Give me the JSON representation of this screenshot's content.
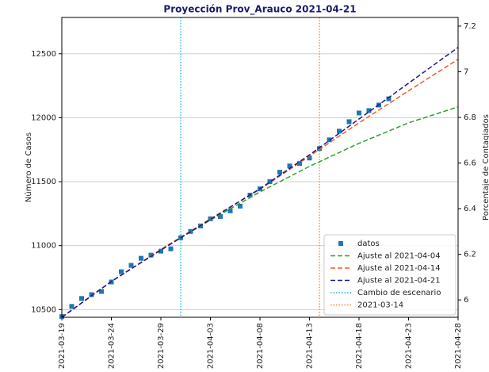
{
  "chart_data": {
    "type": "line",
    "title": "Proyección Prov_Arauco 2021-04-21",
    "ylabel": "Número de Casos",
    "y2label": "Porcentaje de Contagiados",
    "xlim": [
      "2021-03-19",
      "2021-04-28"
    ],
    "xticks": [
      "2021-03-19",
      "2021-03-24",
      "2021-03-29",
      "2021-04-03",
      "2021-04-08",
      "2021-04-13",
      "2021-04-18",
      "2021-04-23",
      "2021-04-28"
    ],
    "ylim": [
      10440,
      12784
    ],
    "yticks": [
      10500,
      11000,
      11500,
      12000,
      12500
    ],
    "y2lim": [
      5.924,
      7.238
    ],
    "y2ticks": [
      6.0,
      6.2,
      6.4,
      6.6,
      6.8,
      7.0,
      7.2
    ],
    "grid": true,
    "legend": "lower right",
    "series": [
      {
        "name": "datos",
        "type": "scatter",
        "color": "#1f77b4",
        "x": [
          "2021-03-19",
          "2021-03-20",
          "2021-03-21",
          "2021-03-22",
          "2021-03-23",
          "2021-03-24",
          "2021-03-25",
          "2021-03-26",
          "2021-03-27",
          "2021-03-28",
          "2021-03-29",
          "2021-03-30",
          "2021-03-31",
          "2021-04-01",
          "2021-04-02",
          "2021-04-03",
          "2021-04-04",
          "2021-04-05",
          "2021-04-06",
          "2021-04-07",
          "2021-04-08",
          "2021-04-09",
          "2021-04-10",
          "2021-04-11",
          "2021-04-12",
          "2021-04-13",
          "2021-04-14",
          "2021-04-15",
          "2021-04-16",
          "2021-04-17",
          "2021-04-18",
          "2021-04-19",
          "2021-04-20",
          "2021-04-21"
        ],
        "values": [
          10445,
          10525,
          10587,
          10617,
          10642,
          10716,
          10796,
          10846,
          10901,
          10926,
          10957,
          10975,
          11062,
          11111,
          11154,
          11210,
          11228,
          11272,
          11309,
          11395,
          11444,
          11500,
          11574,
          11623,
          11642,
          11685,
          11759,
          11827,
          11895,
          11969,
          12037,
          12056,
          12099,
          12148
        ]
      },
      {
        "name": "Ajuste al 2021-04-04",
        "type": "line",
        "dash": "dashed",
        "color": "#2ca02c",
        "x": [
          "2021-03-19",
          "2021-03-24",
          "2021-03-29",
          "2021-04-03",
          "2021-04-08",
          "2021-04-13",
          "2021-04-18",
          "2021-04-23",
          "2021-04-28"
        ],
        "values": [
          10440,
          10720,
          10970,
          11200,
          11420,
          11620,
          11800,
          11960,
          12085
        ]
      },
      {
        "name": "Ajuste al 2021-04-14",
        "type": "line",
        "dash": "dashed",
        "color": "#f05a28",
        "x": [
          "2021-03-19",
          "2021-03-24",
          "2021-03-29",
          "2021-04-03",
          "2021-04-08",
          "2021-04-13",
          "2021-04-18",
          "2021-04-23",
          "2021-04-28"
        ],
        "values": [
          10440,
          10720,
          10970,
          11210,
          11440,
          11700,
          11960,
          12210,
          12457
        ]
      },
      {
        "name": "Ajuste al 2021-04-21",
        "type": "line",
        "dash": "dashed",
        "color": "#1a1a8c",
        "x": [
          "2021-03-19",
          "2021-03-24",
          "2021-03-29",
          "2021-04-03",
          "2021-04-08",
          "2021-04-13",
          "2021-04-18",
          "2021-04-23",
          "2021-04-28"
        ],
        "values": [
          10440,
          10720,
          10965,
          11205,
          11445,
          11710,
          11990,
          12270,
          12550
        ]
      }
    ],
    "vlines": [
      {
        "name": "Cambio de escenario",
        "x": "2021-03-31",
        "color": "#17becf"
      },
      {
        "name": "2021-03-14",
        "x": "2021-04-14",
        "color": "#ff7f0e"
      }
    ]
  }
}
